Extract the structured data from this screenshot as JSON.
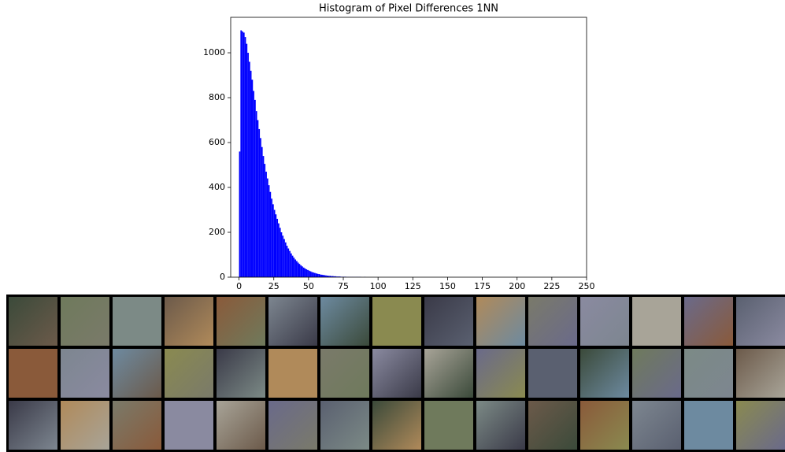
{
  "chart_data": {
    "type": "histogram",
    "title": "Histogram of Pixel Differences 1NN",
    "bins": [
      0,
      1,
      2,
      3,
      4,
      5,
      6,
      7,
      8,
      9,
      10,
      11,
      12,
      13,
      14,
      15,
      16,
      17,
      18,
      19,
      20,
      21,
      22,
      23,
      24,
      25,
      26,
      27,
      28,
      29,
      30,
      31,
      32,
      33,
      34,
      35,
      36,
      37,
      38,
      39,
      40,
      41,
      42,
      43,
      44,
      45,
      46,
      47,
      48,
      49,
      50,
      51,
      52,
      53,
      54,
      55,
      56,
      57,
      58,
      59,
      60,
      61,
      62,
      63,
      64,
      65,
      66,
      67,
      68,
      69,
      70,
      71,
      72,
      73,
      74,
      75,
      76,
      77,
      78,
      79,
      80,
      81,
      82,
      83,
      84,
      85,
      86,
      87,
      88,
      89,
      90,
      91
    ],
    "values": [
      560,
      1100,
      1095,
      1090,
      1070,
      1040,
      1000,
      960,
      920,
      880,
      830,
      790,
      740,
      700,
      660,
      620,
      580,
      540,
      505,
      470,
      440,
      410,
      380,
      350,
      325,
      300,
      280,
      260,
      240,
      220,
      200,
      185,
      170,
      155,
      140,
      128,
      117,
      106,
      96,
      87,
      79,
      72,
      65,
      59,
      53,
      48,
      43,
      39,
      35,
      32,
      29,
      26,
      23,
      21,
      19,
      17,
      15,
      14,
      12,
      11,
      10,
      9,
      8,
      7,
      6,
      6,
      5,
      5,
      4,
      4,
      3,
      3,
      3,
      2,
      2,
      2,
      2,
      1,
      1,
      1,
      1,
      1,
      1,
      1,
      1,
      1,
      1,
      1,
      0,
      0,
      1
    ],
    "color": "#0000ff",
    "xlim": [
      -6,
      250
    ],
    "xticks": [
      0,
      25,
      50,
      75,
      100,
      125,
      150,
      175,
      200,
      225,
      250
    ],
    "ylim": [
      0,
      1158
    ],
    "yticks": [
      0,
      200,
      400,
      600,
      800,
      1000
    ]
  }
}
